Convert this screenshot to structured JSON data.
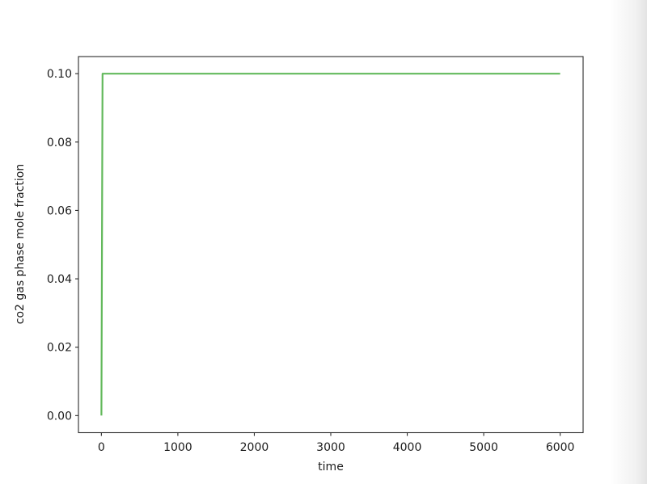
{
  "page": {
    "background": "#ffffff",
    "right_edge_shade": "#e2e2e2"
  },
  "axes": {
    "spine_color": "#2a2a2a",
    "tick_color": "#2a2a2a",
    "text_color": "#1c1c1c"
  },
  "chart_data": {
    "type": "line",
    "title": "",
    "xlabel": "time",
    "ylabel": "co2 gas phase mole fraction",
    "xlim": [
      -300,
      6300
    ],
    "ylim": [
      -0.005,
      0.105
    ],
    "grid": false,
    "legend": "none",
    "xticks": {
      "values": [
        0,
        1000,
        2000,
        3000,
        4000,
        5000,
        6000
      ],
      "labels": [
        "0",
        "1000",
        "2000",
        "3000",
        "4000",
        "5000",
        "6000"
      ]
    },
    "yticks": {
      "values": [
        0.0,
        0.02,
        0.04,
        0.06,
        0.08,
        0.1
      ],
      "labels": [
        "0.00",
        "0.02",
        "0.04",
        "0.06",
        "0.08",
        "0.10"
      ]
    },
    "series": [
      {
        "name": "co2 gas phase mole fraction",
        "color": "#63b95c",
        "linewidth": 2.2,
        "points": [
          [
            0,
            0.0
          ],
          [
            15,
            0.1
          ],
          [
            6000,
            0.1
          ]
        ]
      }
    ]
  }
}
